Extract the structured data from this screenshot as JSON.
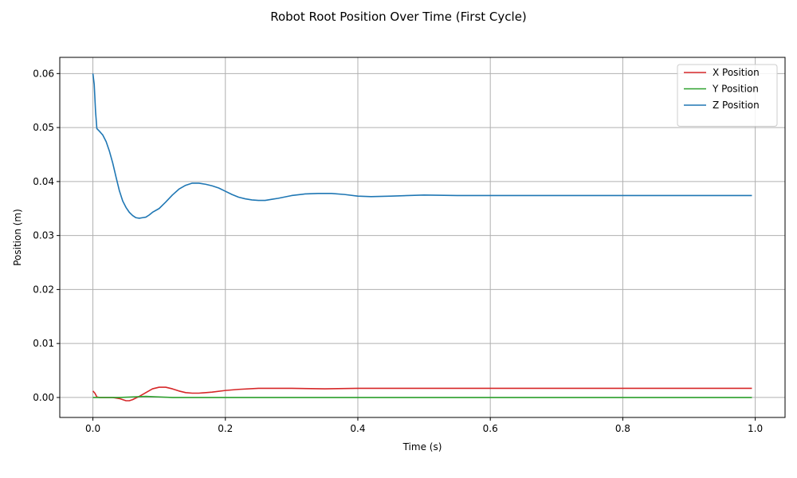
{
  "chart_data": {
    "type": "line",
    "title": "Robot Root Position Over Time (First Cycle)",
    "xlabel": "Time (s)",
    "ylabel": "Position (m)",
    "xlim": [
      -0.05,
      1.045
    ],
    "ylim": [
      -0.0037,
      0.063
    ],
    "grid": true,
    "legend_position": "top-right",
    "x_ticks": [
      0.0,
      0.2,
      0.4,
      0.6,
      0.8,
      1.0
    ],
    "x_tick_labels": [
      "0.0",
      "0.2",
      "0.4",
      "0.6",
      "0.8",
      "1.0"
    ],
    "y_ticks": [
      0.0,
      0.01,
      0.02,
      0.03,
      0.04,
      0.05,
      0.06
    ],
    "y_tick_labels": [
      "0.00",
      "0.01",
      "0.02",
      "0.03",
      "0.04",
      "0.05",
      "0.06"
    ],
    "series": [
      {
        "name": "X Position",
        "color": "#d62728",
        "x": [
          0.0,
          0.003,
          0.006,
          0.01,
          0.02,
          0.03,
          0.04,
          0.05,
          0.055,
          0.06,
          0.07,
          0.08,
          0.09,
          0.1,
          0.11,
          0.12,
          0.13,
          0.14,
          0.15,
          0.16,
          0.18,
          0.2,
          0.22,
          0.25,
          0.28,
          0.3,
          0.35,
          0.4,
          0.45,
          0.5,
          0.6,
          0.7,
          0.8,
          0.9,
          0.995
        ],
        "y": [
          0.0012,
          0.0008,
          0.0001,
          0.0,
          0.0,
          0.0,
          -0.0002,
          -0.0006,
          -0.0006,
          -0.0004,
          0.0002,
          0.0009,
          0.0016,
          0.0019,
          0.0019,
          0.0016,
          0.0012,
          0.0009,
          0.0008,
          0.0008,
          0.001,
          0.0013,
          0.0015,
          0.0017,
          0.0017,
          0.0017,
          0.0016,
          0.0017,
          0.0017,
          0.0017,
          0.0017,
          0.0017,
          0.0017,
          0.0017,
          0.0017
        ]
      },
      {
        "name": "Y Position",
        "color": "#2ca02c",
        "x": [
          0.0,
          0.02,
          0.04,
          0.06,
          0.08,
          0.1,
          0.12,
          0.15,
          0.2,
          0.3,
          0.5,
          0.7,
          0.9,
          0.995
        ],
        "y": [
          0.0,
          0.0,
          0.0,
          0.0001,
          0.0002,
          0.0001,
          0.0,
          0.0,
          0.0,
          0.0,
          0.0,
          0.0,
          0.0,
          0.0
        ]
      },
      {
        "name": "Z Position",
        "color": "#1f77b4",
        "x": [
          0.0,
          0.002,
          0.004,
          0.006,
          0.01,
          0.015,
          0.02,
          0.025,
          0.03,
          0.035,
          0.04,
          0.045,
          0.05,
          0.055,
          0.06,
          0.065,
          0.07,
          0.075,
          0.08,
          0.085,
          0.09,
          0.1,
          0.11,
          0.12,
          0.13,
          0.14,
          0.15,
          0.16,
          0.17,
          0.18,
          0.19,
          0.2,
          0.21,
          0.22,
          0.23,
          0.24,
          0.25,
          0.26,
          0.27,
          0.28,
          0.3,
          0.32,
          0.34,
          0.36,
          0.38,
          0.4,
          0.42,
          0.45,
          0.5,
          0.55,
          0.6,
          0.7,
          0.8,
          0.9,
          0.995
        ],
        "y": [
          0.06,
          0.058,
          0.053,
          0.0498,
          0.0493,
          0.0486,
          0.0474,
          0.0456,
          0.0434,
          0.0408,
          0.0383,
          0.0364,
          0.0352,
          0.0343,
          0.0337,
          0.0333,
          0.0332,
          0.0333,
          0.0334,
          0.0338,
          0.0343,
          0.035,
          0.0362,
          0.0375,
          0.0386,
          0.0393,
          0.0397,
          0.0397,
          0.0395,
          0.0392,
          0.0388,
          0.0382,
          0.0376,
          0.0371,
          0.0368,
          0.0366,
          0.0365,
          0.0365,
          0.0367,
          0.0369,
          0.0374,
          0.0377,
          0.0378,
          0.0378,
          0.0376,
          0.0373,
          0.0372,
          0.0373,
          0.0375,
          0.0374,
          0.0374,
          0.0374,
          0.0374,
          0.0374,
          0.0374
        ]
      }
    ]
  }
}
